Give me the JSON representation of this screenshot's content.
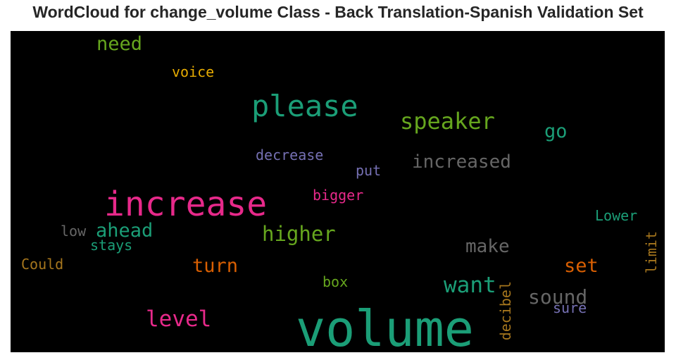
{
  "chart_data": {
    "type": "wordcloud",
    "title": "WordCloud for change_volume Class - Back Translation-Spanish Validation Set",
    "background": "#000000",
    "words": [
      {
        "text": "volume",
        "color": "#1b9e77"
      },
      {
        "text": "increase",
        "color": "#e7298a"
      },
      {
        "text": "please",
        "color": "#1b9e77"
      },
      {
        "text": "speaker",
        "color": "#66a61e"
      },
      {
        "text": "increased",
        "color": "#666666"
      },
      {
        "text": "level",
        "color": "#e7298a"
      },
      {
        "text": "want",
        "color": "#1b9e77"
      },
      {
        "text": "higher",
        "color": "#66a61e"
      },
      {
        "text": "ahead",
        "color": "#1b9e77"
      },
      {
        "text": "sound",
        "color": "#666666"
      },
      {
        "text": "make",
        "color": "#666666"
      },
      {
        "text": "need",
        "color": "#66a61e"
      },
      {
        "text": "turn",
        "color": "#d95f02"
      },
      {
        "text": "set",
        "color": "#d95f02"
      },
      {
        "text": "go",
        "color": "#1b9e77"
      },
      {
        "text": "decibel",
        "color": "#a6761d"
      },
      {
        "text": "decrease",
        "color": "#7570b3"
      },
      {
        "text": "limit",
        "color": "#a6761d"
      },
      {
        "text": "voice",
        "color": "#e6ab02"
      },
      {
        "text": "bigger",
        "color": "#e7298a"
      },
      {
        "text": "Could",
        "color": "#a6761d"
      },
      {
        "text": "put",
        "color": "#7570b3"
      },
      {
        "text": "Lower",
        "color": "#1b9e77"
      },
      {
        "text": "low",
        "color": "#666666"
      },
      {
        "text": "stays",
        "color": "#1b9e77"
      },
      {
        "text": "box",
        "color": "#66a61e"
      },
      {
        "text": "sure",
        "color": "#7570b3"
      }
    ]
  }
}
